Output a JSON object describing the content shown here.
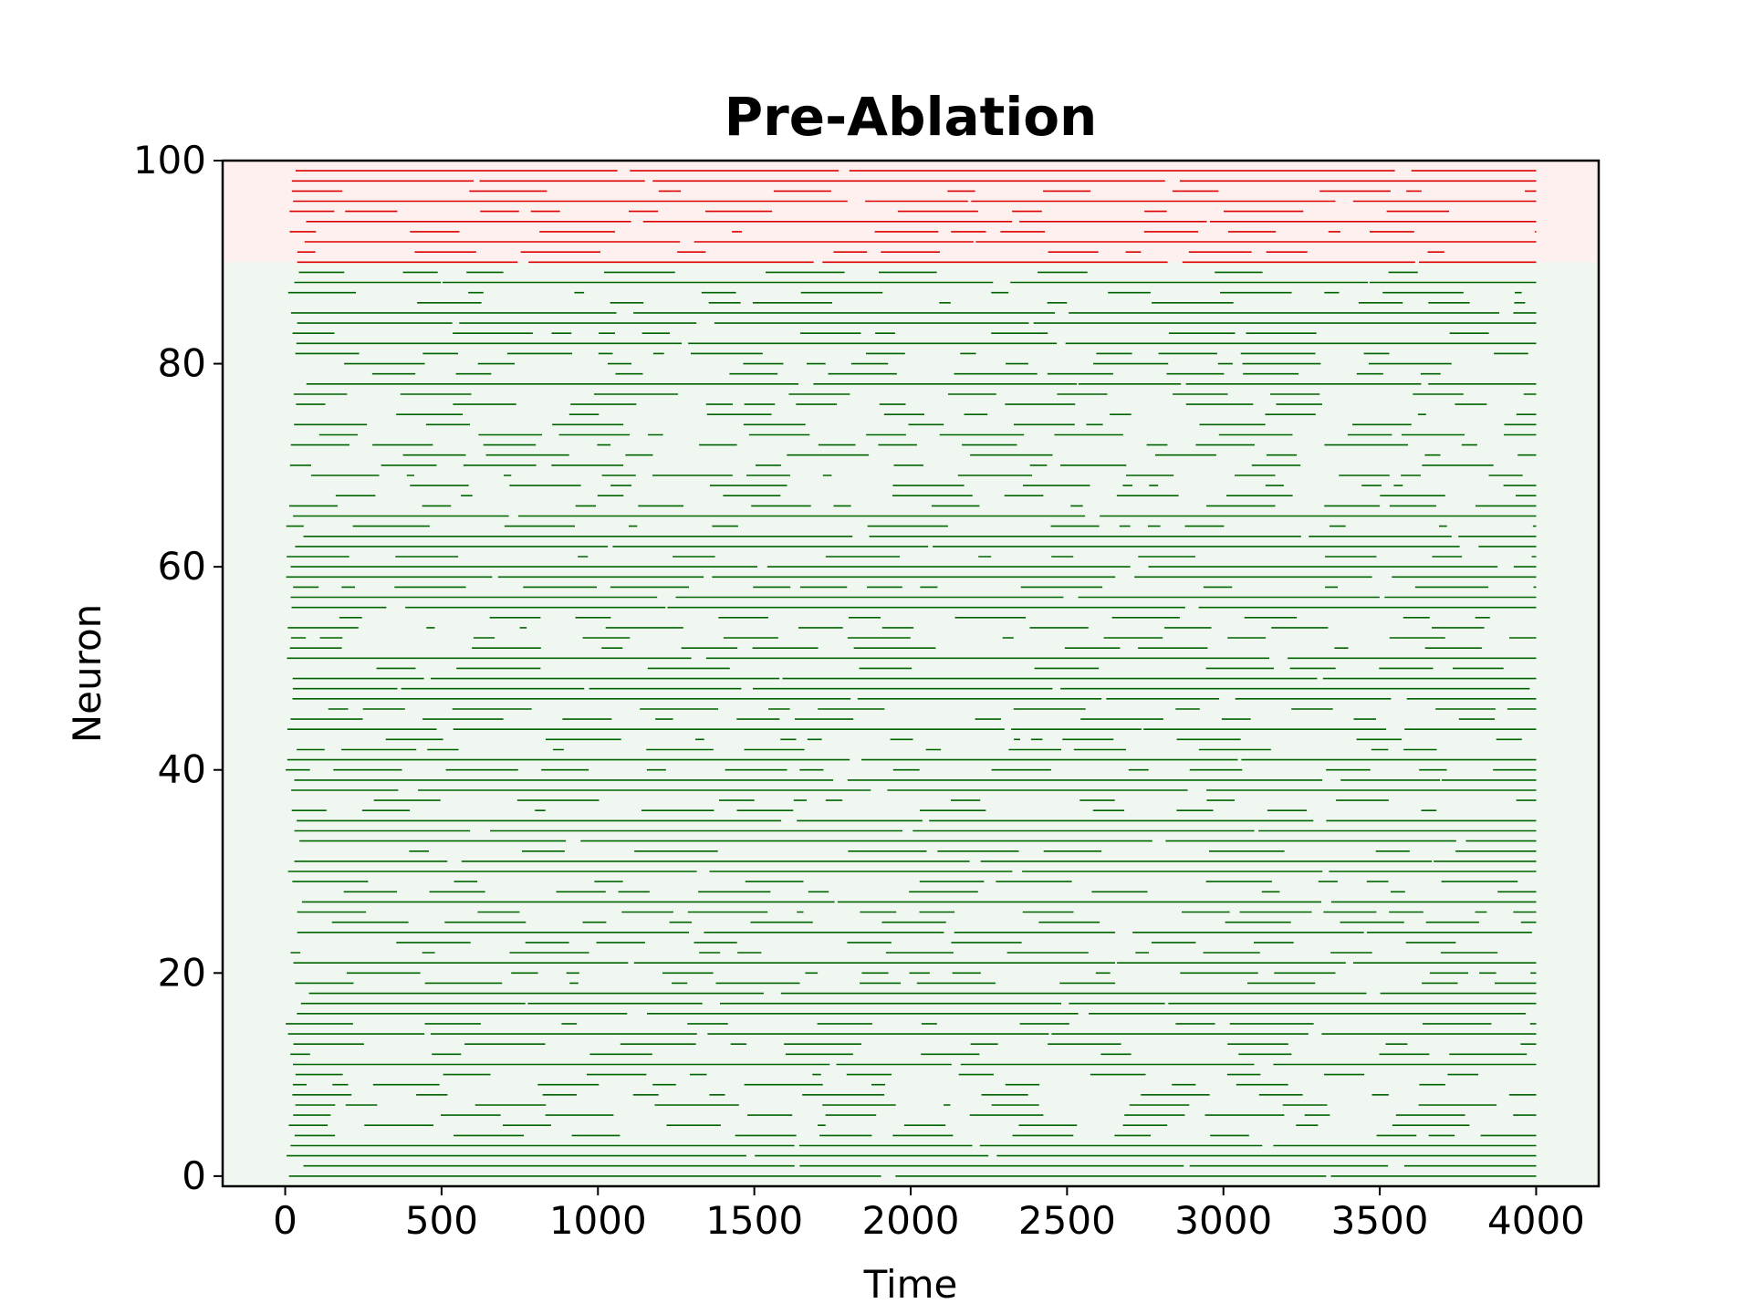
{
  "chart_data": {
    "type": "raster",
    "title": "Pre-Ablation",
    "xlabel": "Time",
    "ylabel": "Neuron",
    "xlim": [
      -200,
      4200
    ],
    "ylim": [
      -1,
      100
    ],
    "x_ticks": [
      0,
      500,
      1000,
      1500,
      2000,
      2500,
      3000,
      3500,
      4000
    ],
    "y_ticks": [
      0,
      20,
      40,
      60,
      80,
      100
    ],
    "grid": false,
    "legend": "none",
    "regions": [
      {
        "y_range": [
          90,
          100
        ],
        "color": "#fff0f0",
        "spike_color": "#dd0000"
      },
      {
        "y_range": [
          -1,
          90
        ],
        "color": "#f0f7f0",
        "spike_color": "#006400"
      }
    ],
    "raster": {
      "neurons": 100,
      "t_range": [
        0,
        4000
      ],
      "dt": 4,
      "note_pattern": "continuous trains with gaps"
    }
  }
}
